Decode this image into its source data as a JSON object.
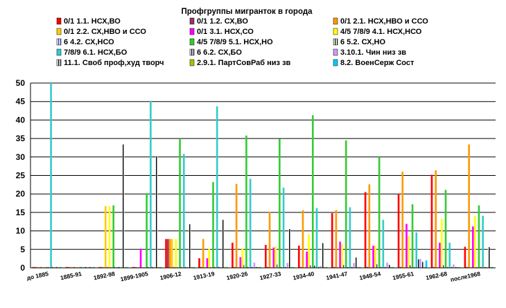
{
  "chart_data": {
    "type": "bar",
    "title": "Профгруппы мигранток в города",
    "xlabel": "",
    "ylabel": "",
    "ylim": [
      0,
      50
    ],
    "yticks": [
      0,
      5,
      10,
      15,
      20,
      25,
      30,
      35,
      40,
      45,
      50
    ],
    "grid": true,
    "legend_position": "top",
    "categories": [
      "до 1885",
      "1885-91",
      "1892-98",
      "1899-1905",
      "1906-12",
      "1913-19",
      "1920-26",
      "1927-33",
      "1934-40",
      "1941-47",
      "1948-54",
      "1955-61",
      "1962-68",
      "после1968"
    ],
    "series": [
      {
        "name": "0/1 1.1. НСХ,ВО",
        "color": "#ff0000",
        "pattern": "solid",
        "values": [
          0,
          0,
          0,
          0,
          7.8,
          2.6,
          6.8,
          6.2,
          6.0,
          14.8,
          20.5,
          20.0,
          25.2,
          5.7
        ]
      },
      {
        "name": "0/1 1.2. СХ,ВО",
        "color": "#993366",
        "pattern": "solid",
        "values": [
          0,
          0,
          0,
          0,
          7.8,
          0,
          0,
          0,
          0,
          0,
          0,
          0,
          0,
          0
        ]
      },
      {
        "name": "0/1 2.1. НСХ,НВО и ССО",
        "color": "#ff9900",
        "pattern": "solid",
        "values": [
          0,
          0,
          0,
          0,
          7.8,
          7.8,
          22.7,
          15.2,
          15.6,
          15.6,
          22.6,
          26.0,
          26.4,
          33.4
        ]
      },
      {
        "name": "0/1 2.2. СХ,НВО и ССО",
        "color": "#ffcc00",
        "pattern": "solid",
        "values": [
          0,
          0,
          16.7,
          0,
          7.8,
          0,
          0,
          0,
          0,
          0,
          0,
          0,
          0,
          0
        ]
      },
      {
        "name": "0/1 3.1. НСХ,СО",
        "color": "#ff00ff",
        "pattern": "solid",
        "values": [
          0,
          0,
          0,
          5.2,
          0,
          2.6,
          2.9,
          5.5,
          4.4,
          7.1,
          6.0,
          11.9,
          6.8,
          11.2
        ]
      },
      {
        "name": "4/5 7/8/9 4.1. НСХ,НСО",
        "color": "#ffff00",
        "pattern": "solid",
        "values": [
          0,
          0,
          16.7,
          0,
          7.8,
          5.2,
          5.3,
          5.9,
          9.1,
          6.5,
          5.9,
          8.6,
          13.3,
          14.0
        ]
      },
      {
        "name": "6 4.2. СХ,НСО",
        "color": "#333399",
        "pattern": "hatched",
        "values": [
          0,
          0,
          0,
          0,
          0,
          0,
          0.8,
          0.9,
          0.7,
          0.8,
          1.0,
          0.7,
          0.7,
          0
        ]
      },
      {
        "name": "4/5 7/8/9 5.1. НСХ,НО",
        "color": "#33cc33",
        "pattern": "solid",
        "values": [
          0,
          0,
          16.9,
          20.2,
          34.8,
          23.2,
          35.8,
          34.9,
          41.3,
          34.5,
          30.0,
          17.2,
          21.1,
          16.9
        ]
      },
      {
        "name": "6 5.2. СХ,НО",
        "color": "#003300",
        "pattern": "hatched",
        "values": [
          0,
          0,
          0,
          0,
          0,
          0,
          0,
          0,
          0.6,
          0,
          0,
          0,
          0,
          0
        ]
      },
      {
        "name": "7/8/9 6.1. НСХ,БО",
        "color": "#33cccc",
        "pattern": "solid",
        "values": [
          50.0,
          0,
          0,
          45.2,
          30.8,
          43.7,
          24.1,
          21.7,
          16.2,
          16.4,
          13.0,
          9.6,
          6.8,
          14.1
        ]
      },
      {
        "name": "6 6.2. СХ,БО",
        "color": "#000000",
        "pattern": "hatched",
        "values": [
          0,
          0,
          0,
          0,
          0,
          0,
          0,
          0,
          0,
          0,
          0,
          2.3,
          0,
          0
        ]
      },
      {
        "name": "3.10.1. Чин низ зв",
        "color": "#cc99ff",
        "pattern": "solid",
        "values": [
          0,
          0,
          0,
          0,
          0,
          0,
          1.4,
          1.3,
          0.5,
          1.3,
          1.4,
          2.4,
          0.9,
          0
        ]
      },
      {
        "name": "11.1. Своб проф,худ творч",
        "color": "#000000",
        "pattern": "hatched",
        "values": [
          0,
          0,
          33.4,
          30.2,
          11.8,
          13.0,
          0,
          10.5,
          6.7,
          2.8,
          0.8,
          1.6,
          0,
          5.6
        ]
      },
      {
        "name": "2.9.1. ПартСовРаб низ зв",
        "color": "#99cc00",
        "pattern": "solid",
        "values": [
          0,
          0,
          0,
          0,
          0,
          0,
          0,
          0,
          0,
          0,
          0,
          0,
          0,
          0
        ]
      },
      {
        "name": "8.2. ВоенСерж Сост",
        "color": "#00ccff",
        "pattern": "solid",
        "values": [
          0,
          0,
          0,
          0,
          0,
          0,
          0,
          0,
          0,
          0,
          0,
          2.0,
          0,
          0
        ]
      }
    ]
  }
}
